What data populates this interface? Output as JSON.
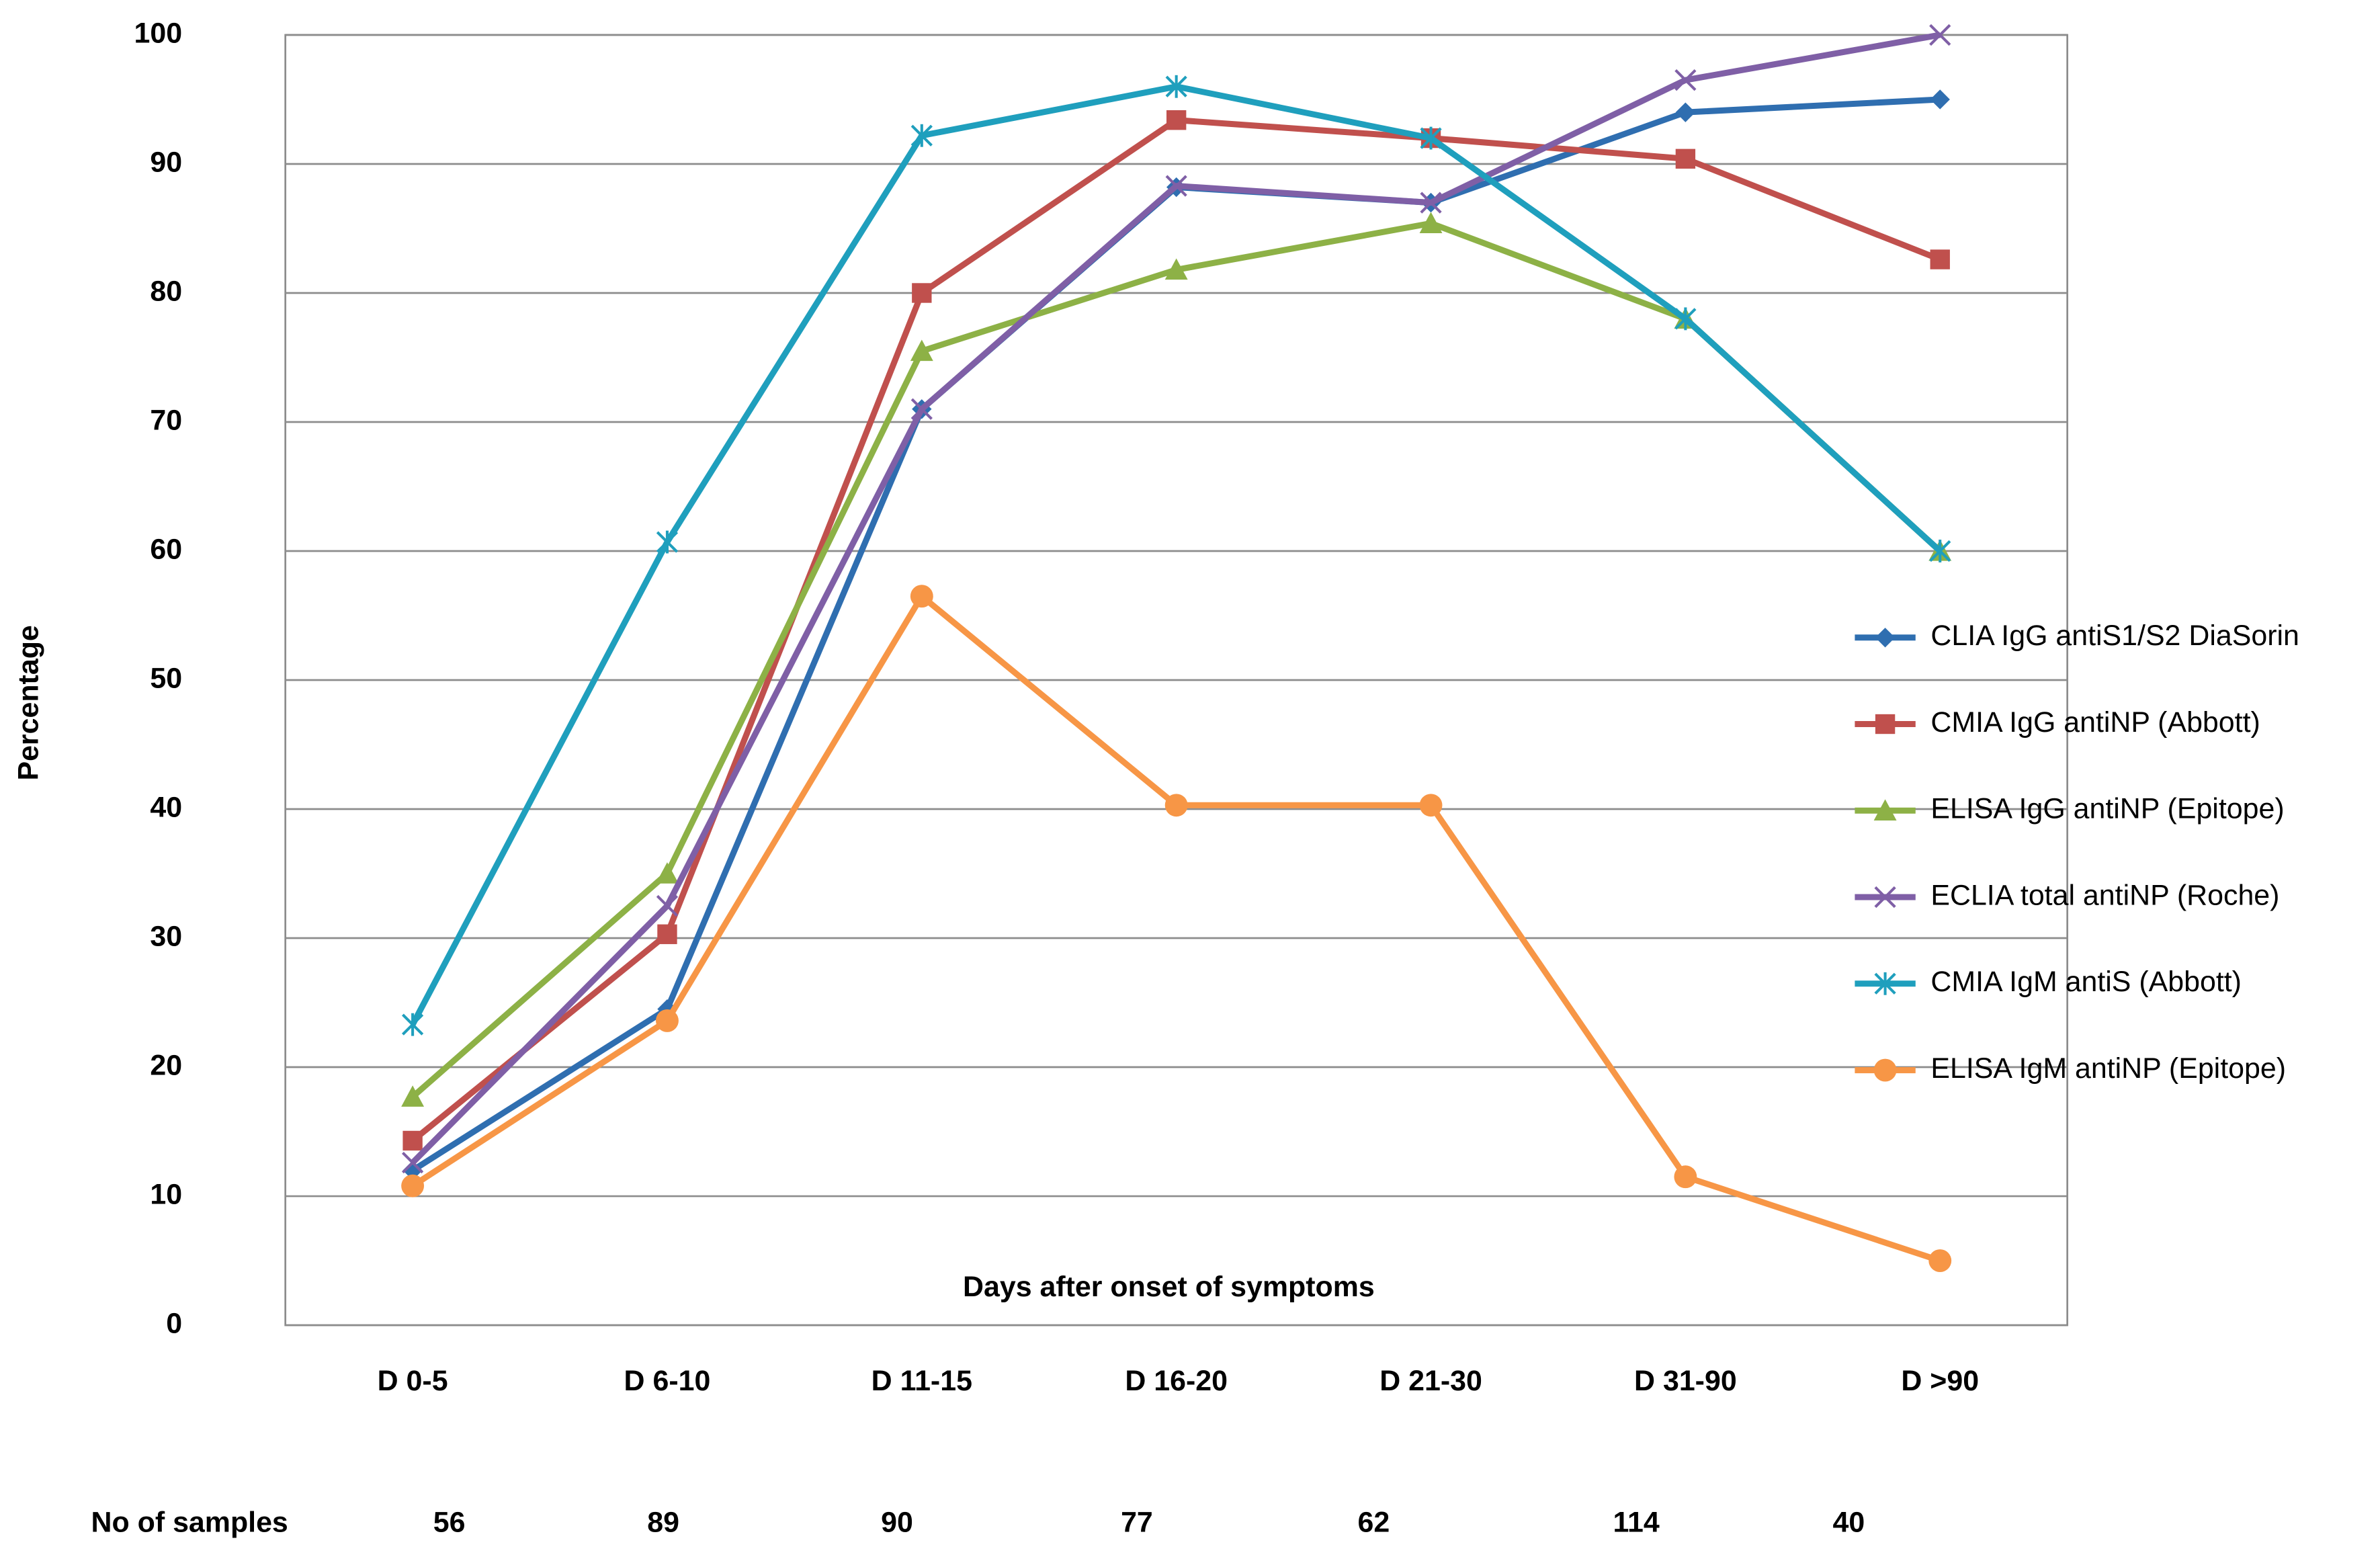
{
  "chart_data": {
    "type": "line",
    "y_label": "Percentage",
    "annotation": "Days after onset of symptoms",
    "categories": [
      "D 0-5",
      "D 6-10",
      "D 11-15",
      "D 16-20",
      "D 21-30",
      "D 31-90",
      "D >90"
    ],
    "ylim": [
      0,
      100
    ],
    "yticks": [
      0,
      10,
      20,
      30,
      40,
      50,
      60,
      70,
      80,
      90,
      100
    ],
    "grid": true,
    "legend": "right",
    "series": [
      {
        "name": "CLIA IgG antiS1/S2 DiaSorin",
        "color": "#2f6eb0",
        "marker": "diamond",
        "values": [
          12,
          24.5,
          71,
          88.2,
          87,
          94,
          95
        ]
      },
      {
        "name": "CMIA IgG antiNP (Abbott)",
        "color": "#c0504d",
        "marker": "square",
        "values": [
          14.3,
          30.3,
          80,
          93.4,
          92,
          90.4,
          82.6
        ]
      },
      {
        "name": "ELISA IgG antiNP (Epitope)",
        "color": "#8db146",
        "marker": "triangle",
        "values": [
          17.7,
          35,
          75.5,
          81.8,
          85.4,
          78,
          60
        ]
      },
      {
        "name": "ECLIA total antiNP (Roche)",
        "color": "#7f5fa6",
        "marker": "x",
        "values": [
          12.6,
          32.5,
          71,
          88.3,
          87,
          96.5,
          100
        ]
      },
      {
        "name": "CMIA IgM antiS (Abbott)",
        "color": "#1f9fbd",
        "marker": "star",
        "values": [
          23.3,
          60.7,
          92.2,
          96,
          92,
          78,
          60
        ]
      },
      {
        "name": "ELISA IgM antiNP (Epitope)",
        "color": "#f79646",
        "marker": "circle",
        "values": [
          10.8,
          23.6,
          56.5,
          40.3,
          40.3,
          11.5,
          5
        ]
      }
    ],
    "sample_counts": {
      "label": "No of samples",
      "values": [
        56,
        89,
        90,
        77,
        62,
        114,
        40
      ]
    }
  }
}
